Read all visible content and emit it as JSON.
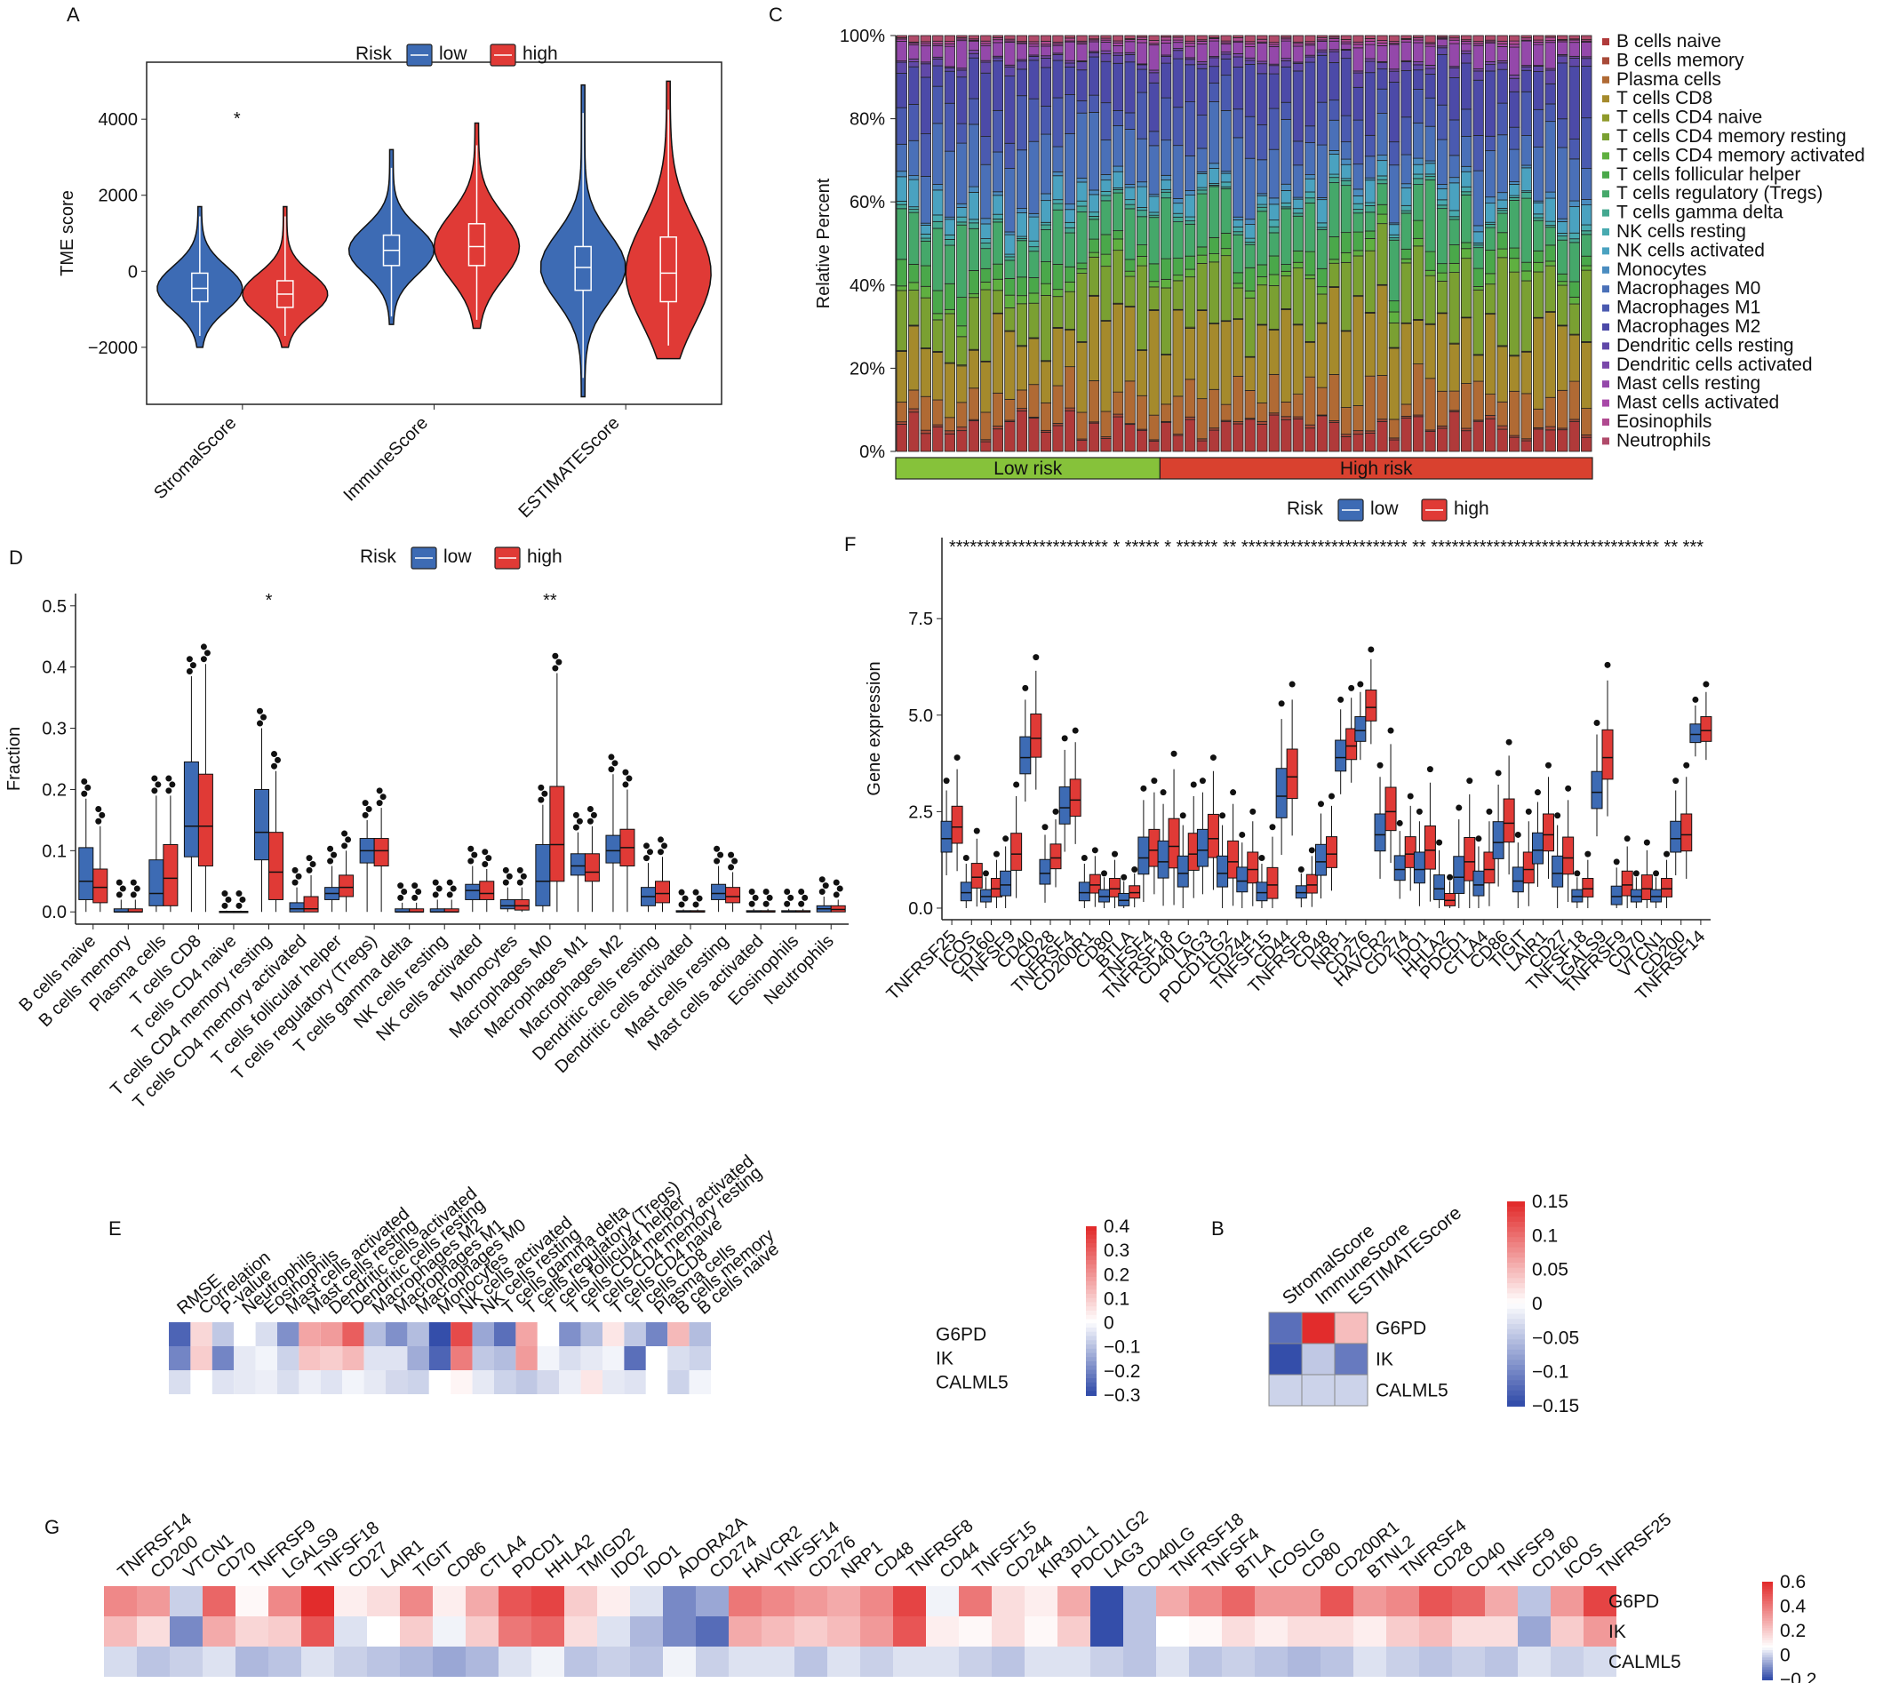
{
  "colors": {
    "low": "#3d6bb4",
    "high": "#e03a36",
    "lowrisk_bar": "#86c23a",
    "highrisk_bar": "#d9412f"
  },
  "legend_common": {
    "title": "Risk",
    "low": "low",
    "high": "high"
  },
  "chart_data": [
    {
      "panel": "A",
      "type": "violin",
      "ylabel": "TME score",
      "yticks": [
        "4000",
        "2000",
        "0",
        "−2000"
      ],
      "ytick_values": [
        4000,
        2000,
        0,
        -2000
      ],
      "ylim": [
        -3500,
        5500
      ],
      "categories": [
        "StromalScore",
        "ImmuneScore",
        "ESTIMATEScore"
      ],
      "significance": [
        "*",
        "",
        ""
      ],
      "series": [
        {
          "name": "low",
          "median": [
            -450,
            550,
            100
          ],
          "q1": [
            -800,
            150,
            -500
          ],
          "q3": [
            -50,
            950,
            650
          ],
          "min": [
            -2000,
            -1400,
            -3300
          ],
          "max": [
            1700,
            3200,
            4900
          ]
        },
        {
          "name": "high",
          "median": [
            -600,
            650,
            -50
          ],
          "q1": [
            -950,
            150,
            -800
          ],
          "q3": [
            -250,
            1250,
            900
          ],
          "min": [
            -2000,
            -1500,
            -2300
          ],
          "max": [
            1700,
            3900,
            5000
          ]
        }
      ]
    },
    {
      "panel": "C",
      "type": "stacked-bar",
      "ylabel": "Relative Percent",
      "yticks": [
        "100%",
        "80%",
        "60%",
        "40%",
        "20%",
        "0%"
      ],
      "groups": [
        {
          "label": "Low risk",
          "count": 22
        },
        {
          "label": "High risk",
          "count": 36
        }
      ],
      "components": [
        "B cells naive",
        "B cells memory",
        "Plasma cells",
        "T cells CD8",
        "T cells CD4 naive",
        "T cells CD4 memory resting",
        "T cells CD4 memory activated",
        "T cells follicular helper",
        "T cells regulatory (Tregs)",
        "T cells gamma delta",
        "NK cells resting",
        "NK cells activated",
        "Monocytes",
        "Macrophages M0",
        "Macrophages M1",
        "Macrophages M2",
        "Dendritic cells resting",
        "Dendritic cells activated",
        "Mast cells resting",
        "Mast cells activated",
        "Eosinophils",
        "Neutrophils"
      ],
      "component_colors": [
        "#b03a3a",
        "#a84a38",
        "#b06a34",
        "#a58a2c",
        "#8f9a2a",
        "#7aa032",
        "#5fb040",
        "#4aa84a",
        "#45a86a",
        "#44a890",
        "#48aab0",
        "#4aa2c0",
        "#4a8cc0",
        "#4a70b8",
        "#4a5ab0",
        "#4c4aa8",
        "#6048a8",
        "#7a48aa",
        "#9448aa",
        "#a848a8",
        "#b04a90",
        "#b04a6a"
      ],
      "mean_fractions": [
        0.06,
        0.005,
        0.08,
        0.16,
        0.0,
        0.13,
        0.02,
        0.04,
        0.1,
        0.01,
        0.01,
        0.04,
        0.01,
        0.12,
        0.08,
        0.11,
        0.02,
        0.005,
        0.04,
        0.005,
        0.005,
        0.01
      ]
    },
    {
      "panel": "D",
      "type": "boxplot",
      "ylabel": "Fraction",
      "yticks": [
        "0.5",
        "0.4",
        "0.3",
        "0.2",
        "0.1",
        "0.0"
      ],
      "ytick_values": [
        0.5,
        0.4,
        0.3,
        0.2,
        0.1,
        0.0
      ],
      "ylim": [
        -0.02,
        0.52
      ],
      "categories": [
        "B cells naive",
        "B cells memory",
        "Plasma cells",
        "T cells CD8",
        "T cells CD4 naive",
        "T cells CD4 memory resting",
        "T cells CD4 memory activated",
        "T cells follicular helper",
        "T cells regulatory (Tregs)",
        "T cells gamma delta",
        "NK cells resting",
        "NK cells activated",
        "Monocytes",
        "Macrophages M0",
        "Macrophages M1",
        "Macrophages M2",
        "Dendritic cells resting",
        "Dendritic cells activated",
        "Mast cells resting",
        "Mast cells activated",
        "Eosinophils",
        "Neutrophils"
      ],
      "significance": [
        "",
        "",
        "",
        "",
        "",
        "*",
        "",
        "",
        "",
        "",
        "",
        "",
        "",
        "**",
        "",
        "",
        "",
        "",
        "",
        "",
        "",
        ""
      ],
      "series": [
        {
          "name": "low",
          "q1": [
            0.02,
            0,
            0.01,
            0.09,
            0,
            0.085,
            0.0,
            0.02,
            0.08,
            0,
            0,
            0.02,
            0.005,
            0.01,
            0.06,
            0.08,
            0.01,
            0,
            0.02,
            0,
            0,
            0
          ],
          "median": [
            0.05,
            0,
            0.03,
            0.14,
            0,
            0.13,
            0.005,
            0.03,
            0.1,
            0,
            0,
            0.035,
            0.01,
            0.05,
            0.075,
            0.1,
            0.025,
            0,
            0.03,
            0,
            0,
            0.005
          ],
          "q3": [
            0.105,
            0.005,
            0.085,
            0.245,
            0.001,
            0.2,
            0.015,
            0.04,
            0.12,
            0.005,
            0.005,
            0.045,
            0.02,
            0.11,
            0.095,
            0.125,
            0.04,
            0.002,
            0.045,
            0.002,
            0.002,
            0.01
          ],
          "max": [
            0.185,
            0.02,
            0.19,
            0.385,
            0.002,
            0.3,
            0.04,
            0.075,
            0.15,
            0.015,
            0.02,
            0.075,
            0.04,
            0.175,
            0.13,
            0.225,
            0.08,
            0.004,
            0.075,
            0.005,
            0.005,
            0.025
          ]
        },
        {
          "name": "high",
          "q1": [
            0.015,
            0,
            0.01,
            0.075,
            0,
            0.02,
            0.0,
            0.025,
            0.075,
            0,
            0,
            0.02,
            0.003,
            0.05,
            0.05,
            0.075,
            0.015,
            0,
            0.015,
            0,
            0,
            0
          ],
          "median": [
            0.04,
            0,
            0.055,
            0.14,
            0,
            0.065,
            0.005,
            0.04,
            0.1,
            0,
            0,
            0.03,
            0.01,
            0.11,
            0.065,
            0.105,
            0.03,
            0,
            0.025,
            0,
            0,
            0.004
          ],
          "q3": [
            0.07,
            0.005,
            0.11,
            0.225,
            0.001,
            0.13,
            0.025,
            0.06,
            0.12,
            0.005,
            0.005,
            0.05,
            0.02,
            0.205,
            0.095,
            0.135,
            0.05,
            0.002,
            0.04,
            0.002,
            0.002,
            0.01
          ],
          "max": [
            0.14,
            0.02,
            0.19,
            0.405,
            0.002,
            0.23,
            0.06,
            0.1,
            0.17,
            0.015,
            0.02,
            0.07,
            0.04,
            0.39,
            0.14,
            0.2,
            0.09,
            0.004,
            0.065,
            0.005,
            0.005,
            0.02
          ]
        }
      ]
    },
    {
      "panel": "F",
      "type": "boxplot",
      "ylabel": "Gene expression",
      "yticks": [
        "7.5",
        "5.0",
        "2.5",
        "0.0"
      ],
      "ytick_values": [
        7.5,
        5.0,
        2.5,
        0.0
      ],
      "ylim": [
        -0.3,
        9.6
      ],
      "significance_text": "*********************** *  ***** *  ****** ** ************************ ** ********************************* ** ***",
      "categories": [
        "TNFRSF25",
        "ICOS",
        "CD160",
        "TNFSF9",
        "CD40",
        "CD28",
        "TNFRSF4",
        "CD200R1",
        "CD80",
        "BTLA",
        "TNFSF4",
        "TNFRSF18",
        "CD40LG",
        "LAG3",
        "PDCD1LG2",
        "CD244",
        "TNFSF15",
        "CD44",
        "TNFRSF8",
        "CD48",
        "NRP1",
        "CD276",
        "HAVCR2",
        "CD274",
        "IDO1",
        "HHLA2",
        "PDCD1",
        "CTLA4",
        "CD86",
        "TIGIT",
        "LAIR1",
        "CD27",
        "TNFSF18",
        "LGALS9",
        "TNFRSF9",
        "CD70",
        "VTCN1",
        "CD200",
        "TNFRSF14"
      ],
      "series": [
        {
          "name": "low",
          "median": [
            1.8,
            0.4,
            0.3,
            0.6,
            3.9,
            0.9,
            2.6,
            0.4,
            0.3,
            0.2,
            1.3,
            1.2,
            0.9,
            1.5,
            0.9,
            0.7,
            0.4,
            2.9,
            0.4,
            1.2,
            3.9,
            4.6,
            1.9,
            1.0,
            1.0,
            0.5,
            0.8,
            0.6,
            1.7,
            0.7,
            1.5,
            0.9,
            0.3,
            3.0,
            0.3,
            0.3,
            0.3,
            1.8,
            4.5
          ],
          "spread": [
            0.5,
            0.3,
            0.2,
            0.4,
            0.6,
            0.4,
            0.6,
            0.3,
            0.2,
            0.2,
            0.6,
            0.6,
            0.5,
            0.6,
            0.5,
            0.4,
            0.3,
            0.8,
            0.2,
            0.5,
            0.5,
            0.4,
            0.6,
            0.4,
            0.5,
            0.4,
            0.6,
            0.4,
            0.6,
            0.4,
            0.5,
            0.5,
            0.2,
            0.6,
            0.3,
            0.2,
            0.2,
            0.5,
            0.3
          ]
        },
        {
          "name": "high",
          "median": [
            2.1,
            0.8,
            0.5,
            1.4,
            4.4,
            1.3,
            2.8,
            0.6,
            0.5,
            0.4,
            1.5,
            1.6,
            1.4,
            1.8,
            1.2,
            1.0,
            0.6,
            3.4,
            0.6,
            1.4,
            4.2,
            5.2,
            2.5,
            1.4,
            1.5,
            0.2,
            1.2,
            1.0,
            2.2,
            1.0,
            1.9,
            1.3,
            0.5,
            3.9,
            0.6,
            0.5,
            0.5,
            1.9,
            4.6
          ],
          "spread": [
            0.6,
            0.4,
            0.3,
            0.6,
            0.7,
            0.4,
            0.6,
            0.3,
            0.3,
            0.2,
            0.6,
            0.8,
            0.6,
            0.7,
            0.6,
            0.5,
            0.5,
            0.8,
            0.3,
            0.5,
            0.5,
            0.5,
            0.7,
            0.5,
            0.7,
            0.2,
            0.7,
            0.5,
            0.7,
            0.5,
            0.6,
            0.6,
            0.3,
            0.8,
            0.4,
            0.4,
            0.3,
            0.6,
            0.4
          ]
        }
      ]
    },
    {
      "panel": "E",
      "type": "heatmap",
      "columns": [
        "RMSE",
        "Correlation",
        "P-value",
        "Neutrophils",
        "Eosinophils",
        "Mast cells activated",
        "Mast cells resting",
        "Dendritic cells activated",
        "Dendritic cells resting",
        "Macrophages M2",
        "Macrophages M1",
        "Macrophages M0",
        "Monocytes",
        "NK cells activated",
        "NK cells resting",
        "T cells gamma delta",
        "T cells regulatory (Tregs)",
        "T cells follicular helper",
        "T cells CD4 memory activated",
        "T cells CD4 memory resting",
        "T cells CD4 naive",
        "T cells CD8",
        "Plasma cells",
        "B cells memory",
        "B cells naive"
      ],
      "rows": [
        "G6PD",
        "IK",
        "CALML5"
      ],
      "legend_ticks": [
        "0.4",
        "0.3",
        "0.2",
        "0.1",
        "0",
        "−0.1",
        "−0.2",
        "−0.3"
      ],
      "range": [
        -0.32,
        0.42
      ],
      "values": [
        [
          -0.28,
          0.08,
          -0.1,
          0.0,
          -0.06,
          -0.2,
          0.18,
          0.2,
          0.32,
          -0.12,
          -0.2,
          -0.12,
          -0.32,
          0.36,
          -0.16,
          -0.26,
          0.18,
          0.0,
          -0.2,
          -0.12,
          0.05,
          -0.1,
          -0.22,
          0.14,
          -0.12
        ],
        [
          -0.22,
          0.1,
          -0.22,
          -0.04,
          -0.02,
          -0.08,
          0.12,
          0.1,
          0.14,
          -0.05,
          -0.05,
          -0.15,
          -0.28,
          0.26,
          -0.1,
          -0.12,
          0.2,
          -0.02,
          -0.06,
          -0.04,
          -0.02,
          -0.26,
          0.0,
          -0.06,
          -0.08
        ],
        [
          -0.06,
          0.0,
          -0.05,
          -0.04,
          -0.03,
          -0.06,
          -0.03,
          -0.05,
          -0.02,
          -0.04,
          -0.07,
          -0.08,
          0.0,
          0.02,
          -0.04,
          -0.08,
          -0.1,
          -0.07,
          -0.03,
          0.05,
          -0.04,
          -0.05,
          0.0,
          -0.08,
          -0.02
        ]
      ]
    },
    {
      "panel": "B",
      "type": "heatmap",
      "columns": [
        "StromalScore",
        "ImmuneScore",
        "ESTIMATEScore"
      ],
      "rows": [
        "G6PD",
        "IK",
        "CALML5"
      ],
      "legend_ticks": [
        "0.15",
        "0.1",
        "0.05",
        "0",
        "−0.05",
        "−0.1",
        "−0.15"
      ],
      "range": [
        -0.16,
        0.16
      ],
      "values": [
        [
          -0.13,
          0.16,
          0.05
        ],
        [
          -0.16,
          -0.05,
          -0.12
        ],
        [
          -0.04,
          -0.04,
          -0.04
        ]
      ]
    },
    {
      "panel": "G",
      "type": "heatmap",
      "columns": [
        "TNFRSF14",
        "CD200",
        "VTCN1",
        "CD70",
        "TNFRSF9",
        "LGALS9",
        "TNFSF18",
        "CD27",
        "LAIR1",
        "TIGIT",
        "CD86",
        "CTLA4",
        "PDCD1",
        "HHLA2",
        "TMIGD2",
        "IDO2",
        "IDO1",
        "ADORA2A",
        "CD274",
        "HAVCR2",
        "TNFSF14",
        "CD276",
        "NRP1",
        "CD48",
        "TNFRSF8",
        "CD44",
        "TNFSF15",
        "CD244",
        "KIR3DL1",
        "PDCD1LG2",
        "LAG3",
        "CD40LG",
        "TNFRSF18",
        "TNFSF4",
        "BTLA",
        "ICOSLG",
        "CD80",
        "CD200R1",
        "BTNL2",
        "TNFRSF4",
        "CD28",
        "CD40",
        "TNFSF9",
        "CD160",
        "ICOS",
        "TNFRSF25"
      ],
      "rows": [
        "G6PD",
        "IK",
        "CALML5"
      ],
      "legend_ticks": [
        "0.6",
        "0.4",
        "0.2",
        "0",
        "−0.2"
      ],
      "range": [
        -0.3,
        0.62
      ],
      "values": [
        [
          0.35,
          0.3,
          -0.08,
          0.45,
          0.02,
          0.35,
          0.62,
          0.05,
          0.1,
          0.35,
          0.05,
          0.25,
          0.5,
          0.55,
          0.15,
          0.05,
          -0.05,
          -0.2,
          -0.15,
          0.4,
          0.35,
          0.3,
          0.25,
          0.35,
          0.55,
          -0.02,
          0.4,
          0.1,
          0.05,
          0.25,
          -0.3,
          -0.1,
          0.25,
          0.35,
          0.45,
          0.3,
          0.3,
          0.5,
          0.3,
          0.35,
          0.5,
          0.45,
          0.25,
          -0.1,
          0.3,
          0.55
        ],
        [
          0.2,
          0.1,
          -0.2,
          0.25,
          0.12,
          0.15,
          0.5,
          -0.05,
          0.0,
          0.15,
          -0.02,
          0.15,
          0.4,
          0.45,
          0.1,
          -0.05,
          -0.12,
          -0.2,
          -0.25,
          0.25,
          0.2,
          0.15,
          0.2,
          0.3,
          0.5,
          0.05,
          0.02,
          0.1,
          0.02,
          0.15,
          -0.3,
          -0.1,
          0.0,
          0.02,
          0.1,
          0.05,
          0.1,
          0.1,
          0.05,
          0.15,
          0.2,
          0.1,
          0.1,
          -0.15,
          0.15,
          0.3
        ],
        [
          -0.06,
          -0.1,
          -0.08,
          -0.05,
          -0.12,
          -0.1,
          -0.05,
          -0.08,
          -0.1,
          -0.12,
          -0.15,
          -0.12,
          -0.05,
          -0.02,
          -0.1,
          -0.08,
          -0.1,
          -0.02,
          -0.08,
          -0.05,
          -0.05,
          -0.1,
          -0.05,
          -0.08,
          -0.05,
          -0.05,
          -0.08,
          -0.1,
          -0.05,
          -0.05,
          -0.08,
          -0.1,
          -0.05,
          -0.1,
          -0.08,
          -0.1,
          -0.12,
          -0.1,
          -0.05,
          -0.08,
          -0.1,
          -0.08,
          -0.1,
          -0.05,
          -0.08,
          -0.06
        ]
      ]
    }
  ],
  "panel_labels": {
    "A": "A",
    "B": "B",
    "C": "C",
    "D": "D",
    "E": "E",
    "F": "F",
    "G": "G"
  }
}
